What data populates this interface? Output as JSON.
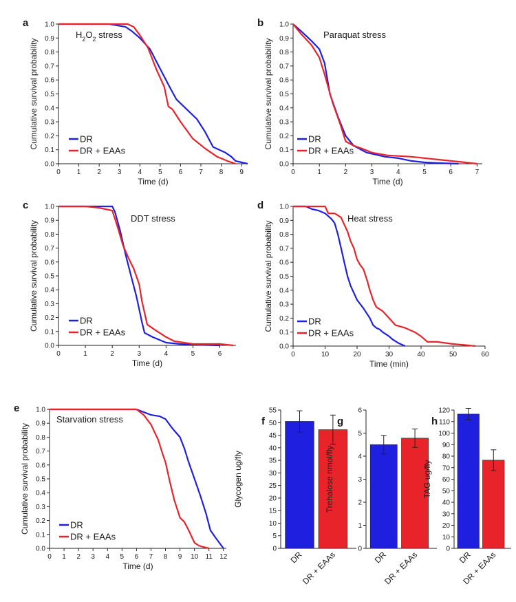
{
  "colors": {
    "DR": "#1f1fe0",
    "DR + EAAs": "#e8232a"
  },
  "chart_data": [
    {
      "type": "line",
      "panel": "a",
      "annotation": "H2O2 stress",
      "xlabel": "Time (d)",
      "ylabel": "Cumulative survival probability",
      "xlim": [
        0,
        9.3
      ],
      "ylim": [
        0,
        1
      ],
      "xticks": [
        0,
        1,
        2,
        3,
        4,
        5,
        6,
        7,
        8,
        9
      ],
      "yticks": [
        0.0,
        0.1,
        0.2,
        0.3,
        0.4,
        0.5,
        0.6,
        0.7,
        0.8,
        0.9,
        1.0
      ],
      "legend": "bottom-left",
      "series": [
        {
          "name": "DR",
          "color": "#1f1fe0",
          "x": [
            0,
            2.5,
            3.3,
            3.6,
            4.0,
            4.5,
            5.0,
            5.5,
            5.8,
            6.3,
            6.8,
            7.2,
            7.6,
            8.2,
            8.5,
            8.7,
            9.3
          ],
          "y": [
            1,
            1,
            0.98,
            0.95,
            0.9,
            0.82,
            0.68,
            0.54,
            0.46,
            0.39,
            0.32,
            0.23,
            0.12,
            0.08,
            0.05,
            0.02,
            0.0
          ]
        },
        {
          "name": "DR + EAAs",
          "color": "#e8232a",
          "x": [
            0,
            3.4,
            3.7,
            4.0,
            4.4,
            4.8,
            5.2,
            5.4,
            5.6,
            6.0,
            6.6,
            7.2,
            7.8,
            8.3,
            8.7
          ],
          "y": [
            1,
            1,
            0.98,
            0.92,
            0.83,
            0.68,
            0.55,
            0.41,
            0.39,
            0.3,
            0.18,
            0.11,
            0.05,
            0.02,
            0.0
          ]
        }
      ]
    },
    {
      "type": "line",
      "panel": "b",
      "annotation": "Paraquat stress",
      "xlabel": "Time (d)",
      "ylabel": "Cumulative survival probability",
      "xlim": [
        0,
        7.2
      ],
      "ylim": [
        0,
        1
      ],
      "xticks": [
        0,
        1,
        2,
        3,
        4,
        5,
        6,
        7
      ],
      "yticks": [
        0.0,
        0.1,
        0.2,
        0.3,
        0.4,
        0.5,
        0.6,
        0.7,
        0.8,
        0.9,
        1.0
      ],
      "legend": "bottom-left",
      "series": [
        {
          "name": "DR",
          "color": "#1f1fe0",
          "x": [
            0,
            0.3,
            0.7,
            1.0,
            1.2,
            1.4,
            1.7,
            2.0,
            2.3,
            2.8,
            3.5,
            4.0,
            4.5,
            5.0,
            5.5,
            6.0,
            6.3
          ],
          "y": [
            1,
            0.95,
            0.88,
            0.82,
            0.72,
            0.5,
            0.34,
            0.2,
            0.13,
            0.08,
            0.05,
            0.04,
            0.02,
            0.01,
            0.005,
            0.002,
            0.0
          ]
        },
        {
          "name": "DR + EAAs",
          "color": "#e8232a",
          "x": [
            0,
            0.3,
            0.7,
            1.0,
            1.2,
            1.5,
            1.8,
            2.0,
            2.3,
            2.6,
            3.0,
            3.6,
            4.5,
            5.5,
            6.3,
            7.0
          ],
          "y": [
            1,
            0.93,
            0.85,
            0.76,
            0.64,
            0.44,
            0.28,
            0.16,
            0.13,
            0.11,
            0.08,
            0.06,
            0.05,
            0.03,
            0.015,
            0.0
          ]
        }
      ]
    },
    {
      "type": "line",
      "panel": "c",
      "annotation": "DDT stress",
      "xlabel": "Time (d)",
      "ylabel": "Cumulative survival probability",
      "xlim": [
        0,
        6.6
      ],
      "ylim": [
        0,
        1
      ],
      "xticks": [
        0,
        1,
        2,
        3,
        4,
        5,
        6
      ],
      "yticks": [
        0.0,
        0.1,
        0.2,
        0.3,
        0.4,
        0.5,
        0.6,
        0.7,
        0.8,
        0.9,
        1.0
      ],
      "legend": "bottom-left",
      "series": [
        {
          "name": "DR",
          "color": "#1f1fe0",
          "x": [
            0,
            2.0,
            2.1,
            2.3,
            2.5,
            2.7,
            2.9,
            3.1,
            3.2,
            3.5,
            4.0,
            4.5,
            5.0,
            6.0
          ],
          "y": [
            1,
            1,
            0.96,
            0.82,
            0.65,
            0.5,
            0.35,
            0.17,
            0.09,
            0.06,
            0.02,
            0.01,
            0.005,
            0.0
          ]
        },
        {
          "name": "DR + EAAs",
          "color": "#e8232a",
          "x": [
            0,
            1.0,
            1.5,
            2.0,
            2.2,
            2.4,
            2.6,
            2.8,
            3.0,
            3.1,
            3.3,
            3.6,
            4.0,
            4.3,
            5.0,
            6.0,
            6.5
          ],
          "y": [
            1,
            1,
            0.99,
            0.97,
            0.85,
            0.72,
            0.63,
            0.55,
            0.44,
            0.32,
            0.15,
            0.11,
            0.06,
            0.03,
            0.01,
            0.01,
            0.0
          ]
        }
      ]
    },
    {
      "type": "line",
      "panel": "d",
      "annotation": "Heat stress",
      "xlabel": "Time (min)",
      "ylabel": "Cumulative survival probability",
      "xlim": [
        0,
        60
      ],
      "ylim": [
        0,
        1
      ],
      "xticks": [
        0,
        10,
        20,
        30,
        40,
        50,
        60
      ],
      "yticks": [
        0.0,
        0.1,
        0.2,
        0.3,
        0.4,
        0.5,
        0.6,
        0.7,
        0.8,
        0.9,
        1.0
      ],
      "legend": "bottom-left",
      "series": [
        {
          "name": "DR",
          "color": "#1f1fe0",
          "x": [
            0,
            4,
            6,
            8,
            10,
            12,
            13,
            14,
            15,
            16,
            17,
            18,
            19,
            20,
            22,
            24,
            25,
            26,
            27,
            28,
            30,
            31,
            33,
            35
          ],
          "y": [
            1,
            1,
            0.98,
            0.97,
            0.95,
            0.91,
            0.88,
            0.8,
            0.7,
            0.6,
            0.5,
            0.43,
            0.38,
            0.33,
            0.27,
            0.2,
            0.15,
            0.13,
            0.12,
            0.1,
            0.07,
            0.05,
            0.02,
            0.0
          ]
        },
        {
          "name": "DR + EAAs",
          "color": "#e8232a",
          "x": [
            0,
            10,
            11,
            13,
            15,
            16,
            17,
            18,
            19,
            20,
            21,
            22,
            23,
            24,
            25,
            26,
            28,
            30,
            32,
            35,
            38,
            40,
            42,
            45,
            50,
            55,
            57
          ],
          "y": [
            1,
            1,
            0.95,
            0.95,
            0.92,
            0.87,
            0.82,
            0.75,
            0.7,
            0.62,
            0.58,
            0.55,
            0.48,
            0.4,
            0.33,
            0.28,
            0.25,
            0.2,
            0.15,
            0.13,
            0.1,
            0.07,
            0.03,
            0.03,
            0.015,
            0.005,
            0.0
          ]
        }
      ]
    },
    {
      "type": "line",
      "panel": "e",
      "annotation": "Starvation stress",
      "xlabel": "Time (d)",
      "ylabel": "Cumulative survival probability",
      "xlim": [
        0,
        12.2
      ],
      "ylim": [
        0,
        1
      ],
      "xticks": [
        0,
        1,
        2,
        3,
        4,
        5,
        6,
        7,
        8,
        9,
        10,
        11,
        12
      ],
      "yticks": [
        0.0,
        0.1,
        0.2,
        0.3,
        0.4,
        0.5,
        0.6,
        0.7,
        0.8,
        0.9,
        1.0
      ],
      "legend": "bottom-left",
      "series": [
        {
          "name": "DR",
          "color": "#1f1fe0",
          "x": [
            0,
            6.0,
            6.5,
            7.0,
            7.6,
            8.0,
            8.5,
            9.0,
            9.3,
            9.6,
            10.0,
            10.4,
            10.8,
            11.1,
            11.5,
            12.0
          ],
          "y": [
            1,
            1,
            0.98,
            0.96,
            0.95,
            0.93,
            0.86,
            0.8,
            0.72,
            0.62,
            0.5,
            0.38,
            0.25,
            0.13,
            0.07,
            0.0
          ]
        },
        {
          "name": "DR + EAAs",
          "color": "#e8232a",
          "x": [
            0,
            6.0,
            6.5,
            7.0,
            7.5,
            7.8,
            8.0,
            8.3,
            8.6,
            9.0,
            9.3,
            9.6,
            10.0,
            10.3,
            10.6,
            11.0
          ],
          "y": [
            1,
            1,
            0.96,
            0.89,
            0.78,
            0.68,
            0.62,
            0.48,
            0.35,
            0.22,
            0.19,
            0.13,
            0.04,
            0.02,
            0.01,
            0.0
          ]
        }
      ]
    },
    {
      "type": "bar",
      "panel": "f",
      "categories": [
        "DR",
        "DR + EAAs"
      ],
      "values": [
        50.5,
        47.2
      ],
      "errors": [
        4.2,
        5.8
      ],
      "ylabel": "Glycogen ug/fly",
      "ylim": [
        0,
        55
      ],
      "yticks": [
        0,
        5,
        10,
        15,
        20,
        25,
        30,
        35,
        40,
        45,
        50,
        55
      ],
      "colors": [
        "#1f1fe0",
        "#e8232a"
      ]
    },
    {
      "type": "bar",
      "panel": "g",
      "categories": [
        "DR",
        "DR + EAAs"
      ],
      "values": [
        4.5,
        4.78
      ],
      "errors": [
        0.4,
        0.4
      ],
      "ylabel": "Trehalose nmol/fly",
      "ylim": [
        0,
        6
      ],
      "yticks": [
        0,
        1,
        2,
        3,
        4,
        5,
        6
      ],
      "colors": [
        "#1f1fe0",
        "#e8232a"
      ]
    },
    {
      "type": "bar",
      "panel": "h",
      "categories": [
        "DR",
        "DR + EAAs"
      ],
      "values": [
        116.5,
        76.5
      ],
      "errors": [
        5.0,
        9.0
      ],
      "ylabel": "TAG ug/fly",
      "ylim": [
        0,
        120
      ],
      "yticks": [
        0,
        10,
        20,
        30,
        40,
        50,
        60,
        70,
        80,
        90,
        100,
        110,
        120
      ],
      "colors": [
        "#1f1fe0",
        "#e8232a"
      ]
    }
  ]
}
